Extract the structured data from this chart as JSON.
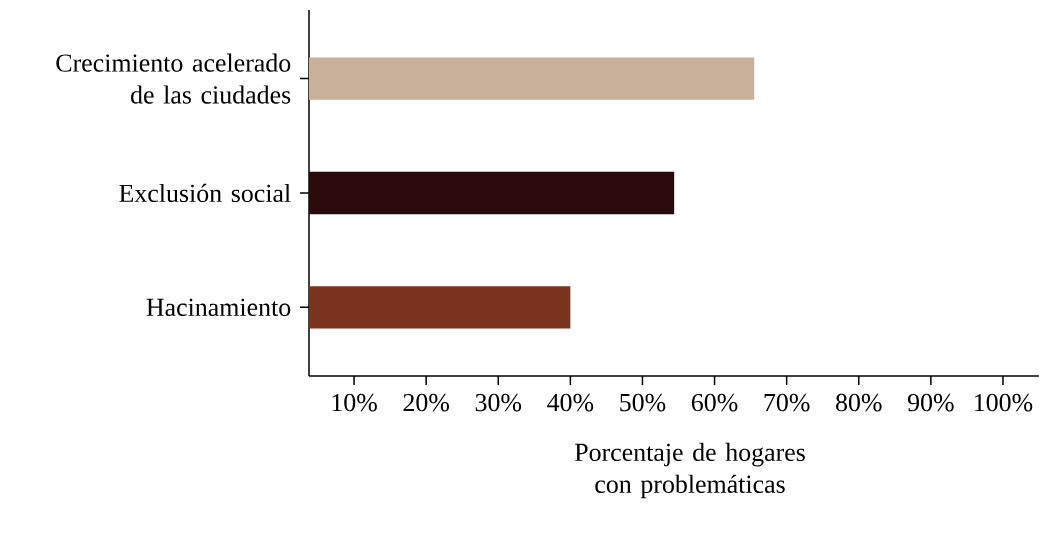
{
  "chart_data": {
    "type": "bar",
    "orientation": "horizontal",
    "categories": [
      "Crecimiento acelerado de las ciudades",
      "Exclusión social",
      "Hacinamiento"
    ],
    "values": [
      65.5,
      54.4,
      40
    ],
    "colors": [
      "#c8b09a",
      "#2a0a0b",
      "#7a331c"
    ],
    "xlim": [
      3.75,
      105
    ],
    "xticks": [
      {
        "value": 10,
        "label": "10%"
      },
      {
        "value": 20,
        "label": "20%"
      },
      {
        "value": 30,
        "label": "30%"
      },
      {
        "value": 40,
        "label": "40%"
      },
      {
        "value": 50,
        "label": "50%"
      },
      {
        "value": 60,
        "label": "60%"
      },
      {
        "value": 70,
        "label": "70%"
      },
      {
        "value": 80,
        "label": "80%"
      },
      {
        "value": 90,
        "label": "90%"
      },
      {
        "value": 100,
        "label": "100%"
      }
    ],
    "xlabel": "Porcentaje de hogares con problemáticas",
    "grid": false
  }
}
